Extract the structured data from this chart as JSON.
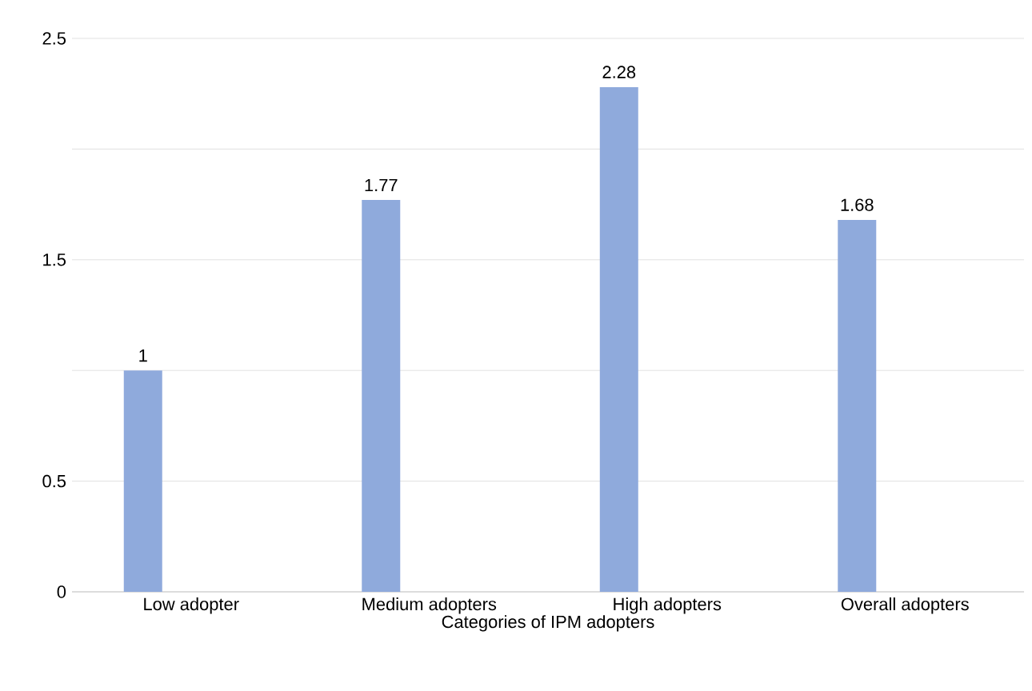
{
  "chart_data": {
    "type": "bar",
    "xlabel": "Categories of IPM adopters",
    "categories": [
      "Low adopter",
      "Medium adopters",
      "High adopters",
      "Overall adopters"
    ],
    "values": [
      1,
      1.77,
      2.28,
      1.68
    ],
    "color": "#8faadc",
    "ylim": [
      0,
      2.5
    ],
    "yticks": [
      0,
      0.5,
      {
        "value": 1,
        "label": null
      },
      1.5,
      {
        "value": 2,
        "label": null
      },
      2.5
    ],
    "grid": "y",
    "data_labels": true
  }
}
